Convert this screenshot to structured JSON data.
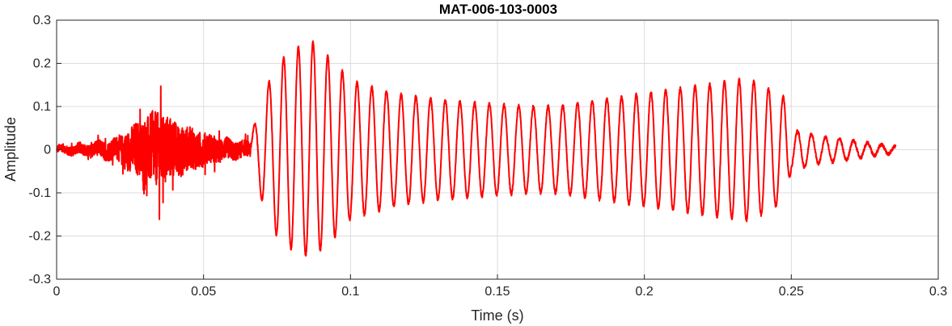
{
  "chart_data": {
    "type": "line",
    "title": "MAT-006-103-0003",
    "xlabel": "Time (s)",
    "ylabel": "Amplitude",
    "xlim": [
      0,
      0.3
    ],
    "ylim": [
      -0.3,
      0.3
    ],
    "xticks": [
      0,
      0.05,
      0.1,
      0.15,
      0.2,
      0.25,
      0.3
    ],
    "xtick_labels": [
      "0",
      "0.05",
      "0.1",
      "0.15",
      "0.2",
      "0.25",
      "0.3"
    ],
    "yticks": [
      -0.3,
      -0.2,
      -0.1,
      0,
      0.1,
      0.2,
      0.3
    ],
    "ytick_labels": [
      "-0.3",
      "-0.2",
      "-0.1",
      "0",
      "0.1",
      "0.2",
      "0.3"
    ],
    "grid": true,
    "legend": false,
    "line_color": "#ff0000",
    "series": [
      {
        "x_start": 0,
        "x_end": 0.2855,
        "envelope_times": [
          0,
          0.01,
          0.02,
          0.025,
          0.03,
          0.035,
          0.04,
          0.045,
          0.05,
          0.055,
          0.06,
          0.066,
          0.067,
          0.07,
          0.075,
          0.08,
          0.085,
          0.088,
          0.09,
          0.095,
          0.1,
          0.105,
          0.11,
          0.115,
          0.12,
          0.13,
          0.14,
          0.15,
          0.16,
          0.17,
          0.18,
          0.19,
          0.2,
          0.21,
          0.22,
          0.23,
          0.235,
          0.24,
          0.245,
          0.248,
          0.25,
          0.255,
          0.26,
          0.265,
          0.27,
          0.275,
          0.28,
          0.2855
        ],
        "envelope_amplitudes": [
          0.015,
          0.025,
          0.045,
          0.09,
          0.14,
          0.16,
          0.12,
          0.09,
          0.07,
          0.05,
          0.04,
          0.03,
          0.05,
          0.12,
          0.2,
          0.23,
          0.245,
          0.25,
          0.23,
          0.2,
          0.16,
          0.15,
          0.14,
          0.13,
          0.125,
          0.115,
          0.11,
          0.105,
          0.1,
          0.1,
          0.11,
          0.12,
          0.13,
          0.14,
          0.15,
          0.16,
          0.165,
          0.15,
          0.13,
          0.12,
          0.045,
          0.04,
          0.03,
          0.028,
          0.022,
          0.017,
          0.012,
          0.008
        ],
        "noise_segment": [
          0,
          0.066
        ],
        "tonal_segment": [
          0.066,
          0.2855
        ],
        "tone_frequency_hz_approx": 200
      }
    ]
  }
}
